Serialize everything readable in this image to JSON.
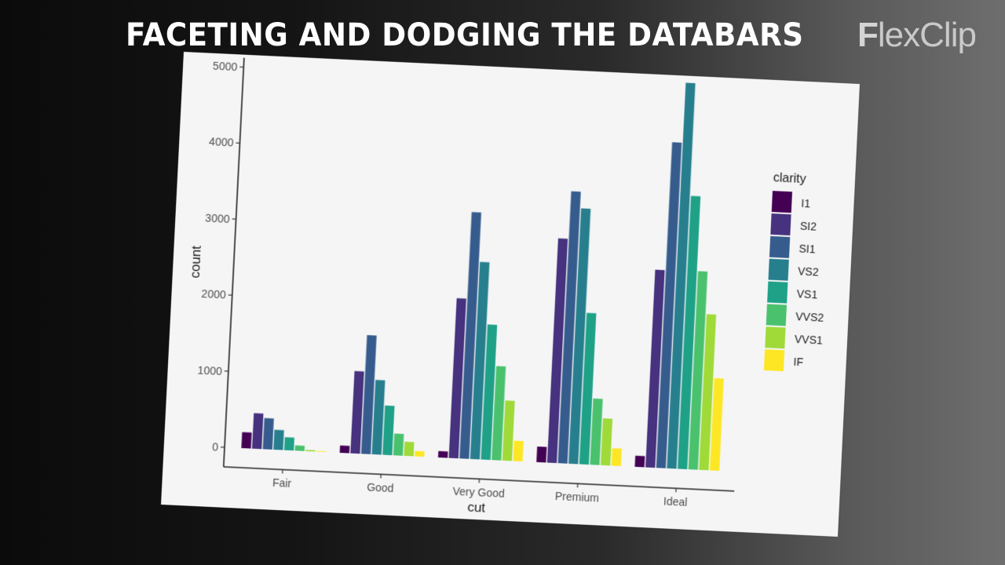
{
  "video": {
    "headline": "FACETING AND DODGING THE DATABARS",
    "brand": {
      "first": "F",
      "rest": "lexClip"
    }
  },
  "chart_data": {
    "type": "bar",
    "subtype": "dodged",
    "title": "",
    "xlabel": "cut",
    "ylabel": "count",
    "categories": [
      "Fair",
      "Good",
      "Very Good",
      "Premium",
      "Ideal"
    ],
    "y_ticks": [
      0,
      1000,
      2000,
      3000,
      4000,
      5000
    ],
    "ylim": [
      0,
      5100
    ],
    "grid": false,
    "legend": {
      "title": "clarity",
      "position": "right"
    },
    "series": [
      {
        "name": "I1",
        "color": "#440154",
        "values": [
          210,
          96,
          84,
          205,
          146
        ]
      },
      {
        "name": "SI2",
        "color": "#46327e",
        "values": [
          466,
          1081,
          2100,
          2949,
          2598
        ]
      },
      {
        "name": "SI1",
        "color": "#365c8d",
        "values": [
          408,
          1560,
          3240,
          3575,
          4282
        ]
      },
      {
        "name": "VS2",
        "color": "#277f8e",
        "values": [
          261,
          978,
          2591,
          3357,
          5071
        ]
      },
      {
        "name": "VS1",
        "color": "#1fa187",
        "values": [
          170,
          648,
          1775,
          1989,
          3589
        ]
      },
      {
        "name": "VVS2",
        "color": "#4ac16d",
        "values": [
          69,
          286,
          1235,
          870,
          2606
        ]
      },
      {
        "name": "VVS1",
        "color": "#a0da39",
        "values": [
          17,
          186,
          789,
          616,
          2047
        ]
      },
      {
        "name": "IF",
        "color": "#fde725",
        "values": [
          9,
          71,
          268,
          230,
          1212
        ]
      }
    ]
  }
}
